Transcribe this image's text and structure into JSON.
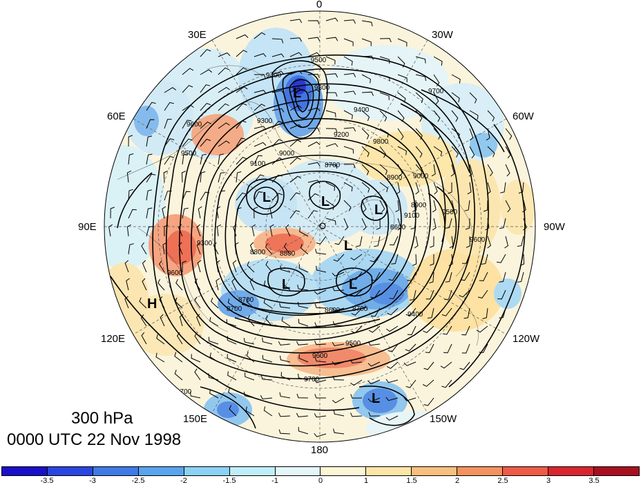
{
  "map": {
    "title_level": "300 hPa",
    "title_time": "0000 UTC 22 Nov 1998",
    "projection": "north-polar-stereographic",
    "field_shaded": "anomaly (colour scale -3.5 to 3.5)",
    "field_contoured": "geopotential height",
    "wind_barbs": true,
    "lon_labels": {
      "top": "0",
      "bottom": "180",
      "lon_30e": "30E",
      "lon_60e": "60E",
      "lon_90e": "90E",
      "lon_120e": "120E",
      "lon_150e": "150E",
      "lon_30w": "30W",
      "lon_60w": "60W",
      "lon_90w": "90W",
      "lon_120w": "120W",
      "lon_150w": "150W"
    },
    "contour_labels": [
      "9500",
      "9400",
      "9300",
      "9600",
      "9500",
      "9400",
      "9300",
      "9200",
      "9100",
      "9000",
      "8900",
      "8800",
      "8700",
      "8600",
      "9700",
      "9800",
      "9000",
      "9100",
      "8900",
      "9300",
      "9600",
      "9400",
      "9600",
      "9500",
      "9600",
      "9700",
      "9700",
      "8800",
      "8700",
      "9500",
      "8700",
      "8600",
      "8700"
    ],
    "centers": [
      {
        "label": "L",
        "name": "low-barents"
      },
      {
        "label": "L",
        "name": "low-polar-west"
      },
      {
        "label": "L",
        "name": "low-polar-east"
      },
      {
        "label": "L",
        "name": "low-greenland"
      },
      {
        "label": "L",
        "name": "low-siberia"
      },
      {
        "label": "L",
        "name": "low-east-siberia"
      },
      {
        "label": "L",
        "name": "low-canada"
      },
      {
        "label": "L",
        "name": "low-pacific"
      },
      {
        "label": "H",
        "name": "high-china"
      }
    ]
  },
  "colorbar": {
    "colors": [
      "#1a10c8",
      "#2a46e0",
      "#3f7ae6",
      "#5aa4ee",
      "#8bd2f4",
      "#bfeef8",
      "#e4f6f8",
      "#fdf6d6",
      "#fde5a6",
      "#f8c07e",
      "#f3925e",
      "#ee5b47",
      "#d8262e",
      "#a81020"
    ],
    "ticks": [
      "-3.5",
      "-3",
      "-2.5",
      "-2",
      "-1.5",
      "-1",
      "0",
      "1",
      "1.5",
      "2",
      "2.5",
      "3",
      "3.5"
    ]
  }
}
